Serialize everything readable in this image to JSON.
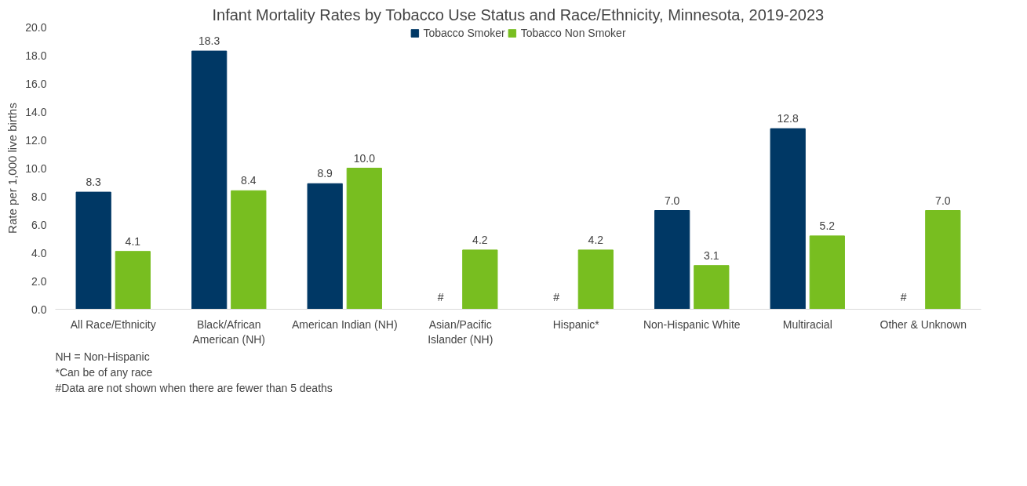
{
  "chart_data": {
    "type": "bar",
    "title": "Infant Mortality Rates by Tobacco Use Status and Race/Ethnicity, Minnesota, 2019-2023",
    "ylabel": "Rate per 1,000 live births",
    "categories": [
      "All Race/Ethnicity",
      "Black/African American (NH)",
      "American Indian (NH)",
      "Asian/Pacific Islander (NH)",
      "Hispanic*",
      "Non-Hispanic White",
      "Multiracial",
      "Other & Unknown"
    ],
    "series": [
      {
        "name": "Tobacco Smoker",
        "color": "#003865",
        "values": [
          8.3,
          18.3,
          8.9,
          null,
          null,
          7.0,
          12.8,
          null
        ],
        "value_labels": [
          "8.3",
          "18.3",
          "8.9",
          "#",
          "#",
          "7.0",
          "12.8",
          "#"
        ]
      },
      {
        "name": "Tobacco Non Smoker",
        "color": "#78be20",
        "values": [
          4.1,
          8.4,
          10.0,
          4.2,
          4.2,
          3.1,
          5.2,
          7.0
        ],
        "value_labels": [
          "4.1",
          "8.4",
          "10.0",
          "4.2",
          "4.2",
          "3.1",
          "5.2",
          "7.0"
        ]
      }
    ],
    "ylim": [
      0,
      20
    ],
    "yticks": [
      {
        "value": 0,
        "label": "0.0"
      },
      {
        "value": 2,
        "label": "2.0"
      },
      {
        "value": 4,
        "label": "4.0"
      },
      {
        "value": 6,
        "label": "6.0"
      },
      {
        "value": 8,
        "label": "8.0"
      },
      {
        "value": 10,
        "label": "10.0"
      },
      {
        "value": 12,
        "label": "12.0"
      },
      {
        "value": 14,
        "label": "14.0"
      },
      {
        "value": 16,
        "label": "16.0"
      },
      {
        "value": 18,
        "label": "18.0"
      },
      {
        "value": 20,
        "label": "20.0"
      }
    ],
    "grid": false,
    "legend": "top",
    "annotations": [
      "NH = Non-Hispanic",
      "*Can be of any race",
      "#Data are not shown when there are fewer than 5 deaths"
    ]
  }
}
